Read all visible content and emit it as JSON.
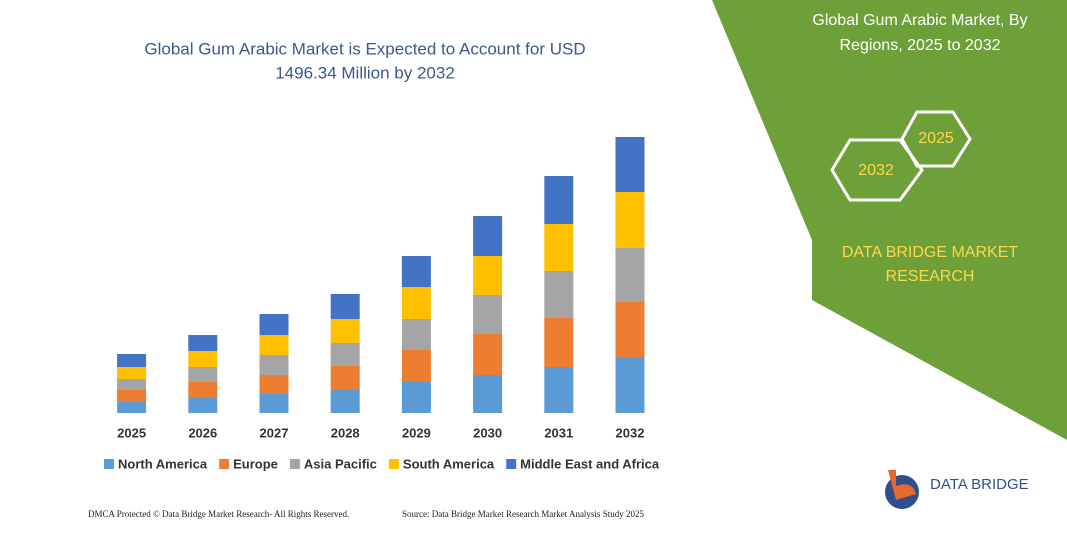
{
  "chart_data": {
    "type": "stacked-bar",
    "title": [
      "Global Gum Arabic Market is Expected to Account for USD",
      "1496.34 Million by 2032"
    ],
    "categories": [
      "2025",
      "2026",
      "2027",
      "2028",
      "2029",
      "2030",
      "2031",
      "2032"
    ],
    "series": [
      {
        "name": "North America",
        "color": "#5b9bd5",
        "values": [
          11,
          15,
          19,
          23,
          31,
          38,
          46,
          55
        ]
      },
      {
        "name": "Europe",
        "color": "#ed7d31",
        "values": [
          12,
          16,
          19,
          24,
          32,
          41,
          49,
          56
        ]
      },
      {
        "name": "Asia Pacific",
        "color": "#a5a5a5",
        "values": [
          11,
          15,
          20,
          23,
          31,
          39,
          47,
          54
        ]
      },
      {
        "name": "South America",
        "color": "#ffc000",
        "values": [
          12,
          16,
          20,
          24,
          32,
          39,
          47,
          56
        ]
      },
      {
        "name": "Middle East and Africa",
        "color": "#4472c4",
        "values": [
          13,
          16,
          21,
          25,
          31,
          40,
          48,
          55
        ]
      }
    ]
  },
  "panel": {
    "title": [
      "Global Gum Arabic Market, By",
      "Regions, 2025 to 2032"
    ],
    "hex_left": "2032",
    "hex_right": "2025",
    "brand": [
      "DATA BRIDGE MARKET",
      "RESEARCH"
    ],
    "logo": "DATA BRIDGE"
  },
  "footer": {
    "left": "DMCA Protected © Data Bridge Market Research-  All Rights Reserved.",
    "right": "Source: Data Bridge Market Research  Market Analysis Study 2025"
  }
}
